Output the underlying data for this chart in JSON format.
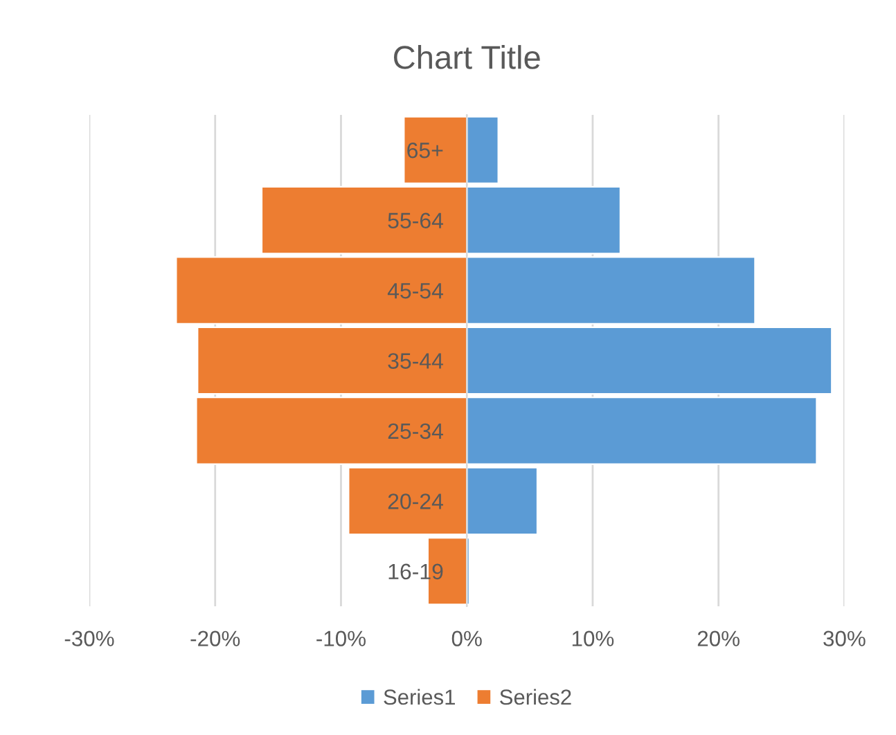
{
  "chart_data": {
    "type": "bar",
    "orientation": "horizontal",
    "stacked": true,
    "title": "Chart Title",
    "categories": [
      "65+",
      "55-64",
      "45-54",
      "35-44",
      "25-34",
      "20-24",
      "16-19"
    ],
    "series": [
      {
        "name": "Series1",
        "color": "#5b9bd5",
        "values": [
          2.5,
          12.2,
          22.9,
          29.0,
          27.8,
          5.6,
          0.2
        ]
      },
      {
        "name": "Series2",
        "color": "#ed7d31",
        "values": [
          -5.0,
          -16.3,
          -23.1,
          -21.4,
          -21.5,
          -9.4,
          -3.1
        ]
      }
    ],
    "xlim": [
      -30,
      30
    ],
    "xticks": [
      {
        "value": -30,
        "label": "-30%"
      },
      {
        "value": -20,
        "label": "-20%"
      },
      {
        "value": -10,
        "label": "-10%"
      },
      {
        "value": 0,
        "label": "0%"
      },
      {
        "value": 10,
        "label": "10%"
      },
      {
        "value": 20,
        "label": "20%"
      },
      {
        "value": 30,
        "label": "30%"
      }
    ],
    "grid": "x",
    "legend": "bottom"
  }
}
